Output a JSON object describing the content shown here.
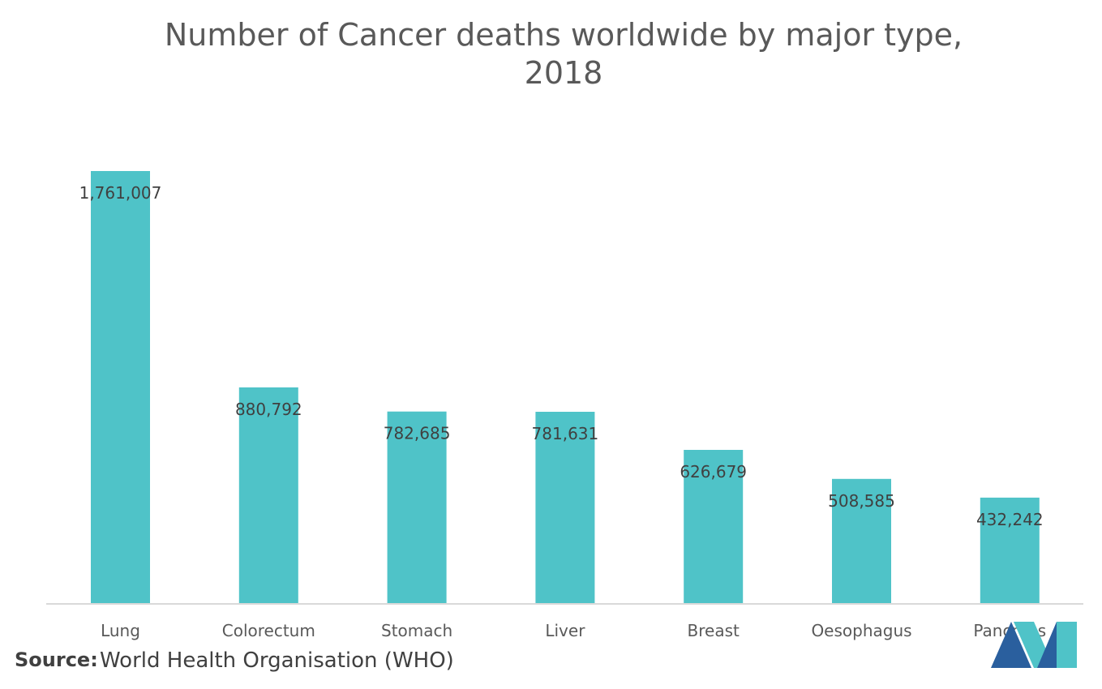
{
  "chart_data": {
    "type": "bar",
    "title_line1": "Number of Cancer deaths worldwide by major type,",
    "title_line2": "2018",
    "categories": [
      "Lung",
      "Colorectum",
      "Stomach",
      "Liver",
      "Breast",
      "Oesophagus",
      "Pancreas"
    ],
    "values": [
      1761007,
      880792,
      782685,
      781631,
      626679,
      508585,
      432242
    ],
    "value_labels": [
      "1,761,007",
      "880,792",
      "782,685",
      "781,631",
      "626,679",
      "508,585",
      "432,242"
    ],
    "xlabel": "",
    "ylabel": "",
    "ylim": [
      0,
      1761007
    ],
    "grid": false,
    "legend": "none",
    "bar_color": "#4fc3c8"
  },
  "source": {
    "label": "Source:",
    "text": "World Health Organisation (WHO)"
  },
  "logo": {
    "icon": "mordor-logo-icon",
    "colors": [
      "#2a5f9e",
      "#4fc3c8"
    ]
  }
}
